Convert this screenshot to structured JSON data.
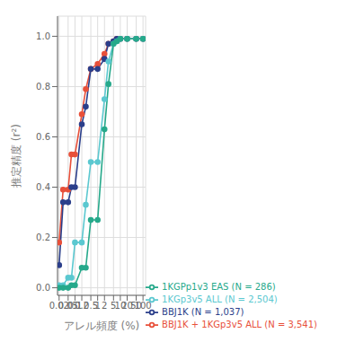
{
  "chart_data": {
    "type": "line",
    "xlabel": "アレル頻度 (%)",
    "ylabel": "推定精度 (r²)",
    "x": [
      0.02,
      0.03,
      0.05,
      0.07,
      0.1,
      0.2,
      0.3,
      0.5,
      1,
      2,
      3,
      5,
      7,
      10,
      20,
      50,
      100
    ],
    "series": [
      {
        "name": "BBJ1K + 1KGp3v5 ALL (N = 3,541)",
        "color": "#E8503A",
        "values": [
          0.18,
          0.39,
          0.39,
          0.53,
          0.53,
          0.69,
          0.79,
          0.87,
          0.89,
          0.93,
          0.97,
          0.98,
          0.99,
          0.99,
          0.99,
          0.99,
          0.99
        ]
      },
      {
        "name": "BBJ1K (N = 1,037)",
        "color": "#2B3F8B",
        "values": [
          0.09,
          0.34,
          0.34,
          0.4,
          0.4,
          0.65,
          0.72,
          0.87,
          0.87,
          0.91,
          0.97,
          0.98,
          0.99,
          0.99,
          0.99,
          0.99,
          0.99
        ]
      },
      {
        "name": "1KGp3v5 ALL (N = 2,504)",
        "color": "#5BC8D0",
        "values": [
          0.01,
          0.01,
          0.04,
          0.04,
          0.18,
          0.18,
          0.33,
          0.5,
          0.5,
          0.75,
          0.9,
          0.97,
          0.98,
          0.99,
          0.99,
          0.99,
          0.99
        ]
      },
      {
        "name": "1KGPp1v3 EAS (N = 286)",
        "color": "#26A98B",
        "values": [
          0.0,
          0.0,
          0.0,
          0.01,
          0.01,
          0.08,
          0.08,
          0.27,
          0.27,
          0.63,
          0.81,
          0.97,
          0.98,
          0.99,
          0.99,
          0.99,
          0.99
        ]
      }
    ],
    "xlim": [
      0.017,
      130
    ],
    "ylim": [
      -0.03,
      1.08
    ],
    "xticks": [
      0.02,
      0.05,
      0.1,
      0.2,
      0.5,
      1,
      2,
      5,
      10,
      20,
      50,
      100
    ],
    "yticks": [
      {
        "value": 0,
        "label": "0.0"
      },
      0.2,
      0.4,
      0.6,
      0.8,
      {
        "value": 1,
        "label": "1.0"
      }
    ],
    "log": "x",
    "grid": true,
    "legend": "lower right",
    "marker": "circle"
  }
}
